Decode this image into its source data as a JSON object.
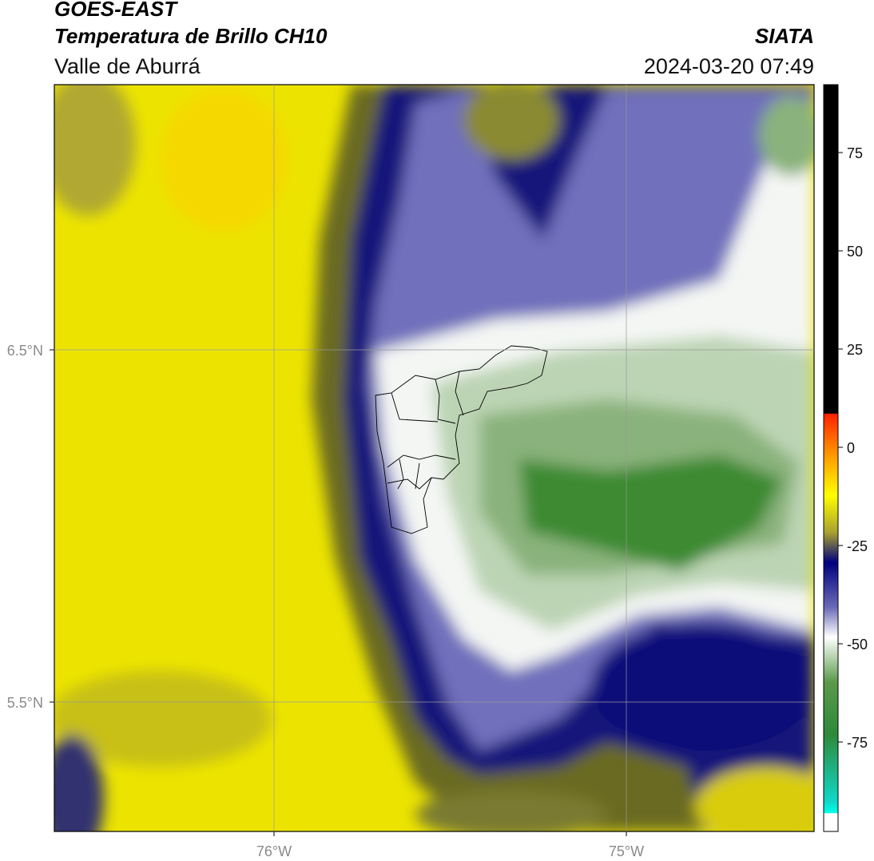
{
  "header": {
    "title": "GOES-EAST",
    "subtitle": "Temperatura de Brillo CH10",
    "region": "Valle de Aburrá",
    "brand": "SIATA",
    "datetime": "2024-03-20 07:49"
  },
  "map": {
    "lat_labels": [
      "6.5°N",
      "5.5°N"
    ],
    "lon_labels": [
      "76°W",
      "75°W"
    ]
  },
  "colorbar": {
    "ticks": [
      75,
      50,
      25,
      0,
      -25,
      -50,
      -75
    ]
  }
}
